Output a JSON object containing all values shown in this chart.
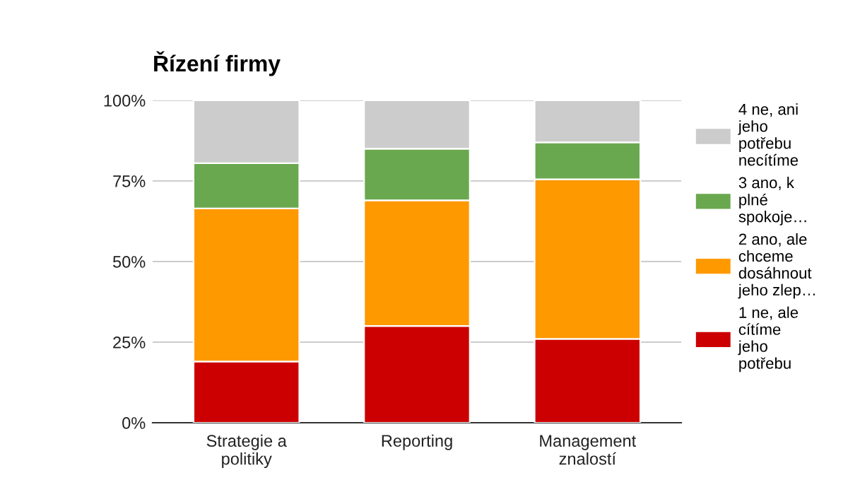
{
  "chart_data": {
    "type": "bar",
    "title": "Řízení firmy",
    "stacked": true,
    "categories": [
      "Strategie a politiky",
      "Reporting",
      "Management znalostí"
    ],
    "series": [
      {
        "name": "1 ne, ale cítíme jeho potřebu",
        "color": "#cc0000",
        "values": [
          19,
          30,
          26
        ]
      },
      {
        "name": "2 ano, ale chceme dosáhnout jeho zlep…",
        "color": "#ff9900",
        "values": [
          47.5,
          39,
          49.5
        ]
      },
      {
        "name": "3 ano, k plné spokoje…",
        "color": "#6aa84f",
        "values": [
          14,
          16,
          11.5
        ]
      },
      {
        "name": "4 ne, ani jeho potřebu necítíme",
        "color": "#cccccc",
        "values": [
          19.5,
          15,
          13
        ]
      }
    ],
    "ylim": [
      0,
      100
    ],
    "yticks": [
      {
        "value": 0,
        "label": "0%"
      },
      {
        "value": 25,
        "label": "25%"
      },
      {
        "value": 50,
        "label": "50%"
      },
      {
        "value": 75,
        "label": "75%"
      },
      {
        "value": 100,
        "label": "100%"
      }
    ],
    "grid": "y",
    "legend": "right"
  }
}
